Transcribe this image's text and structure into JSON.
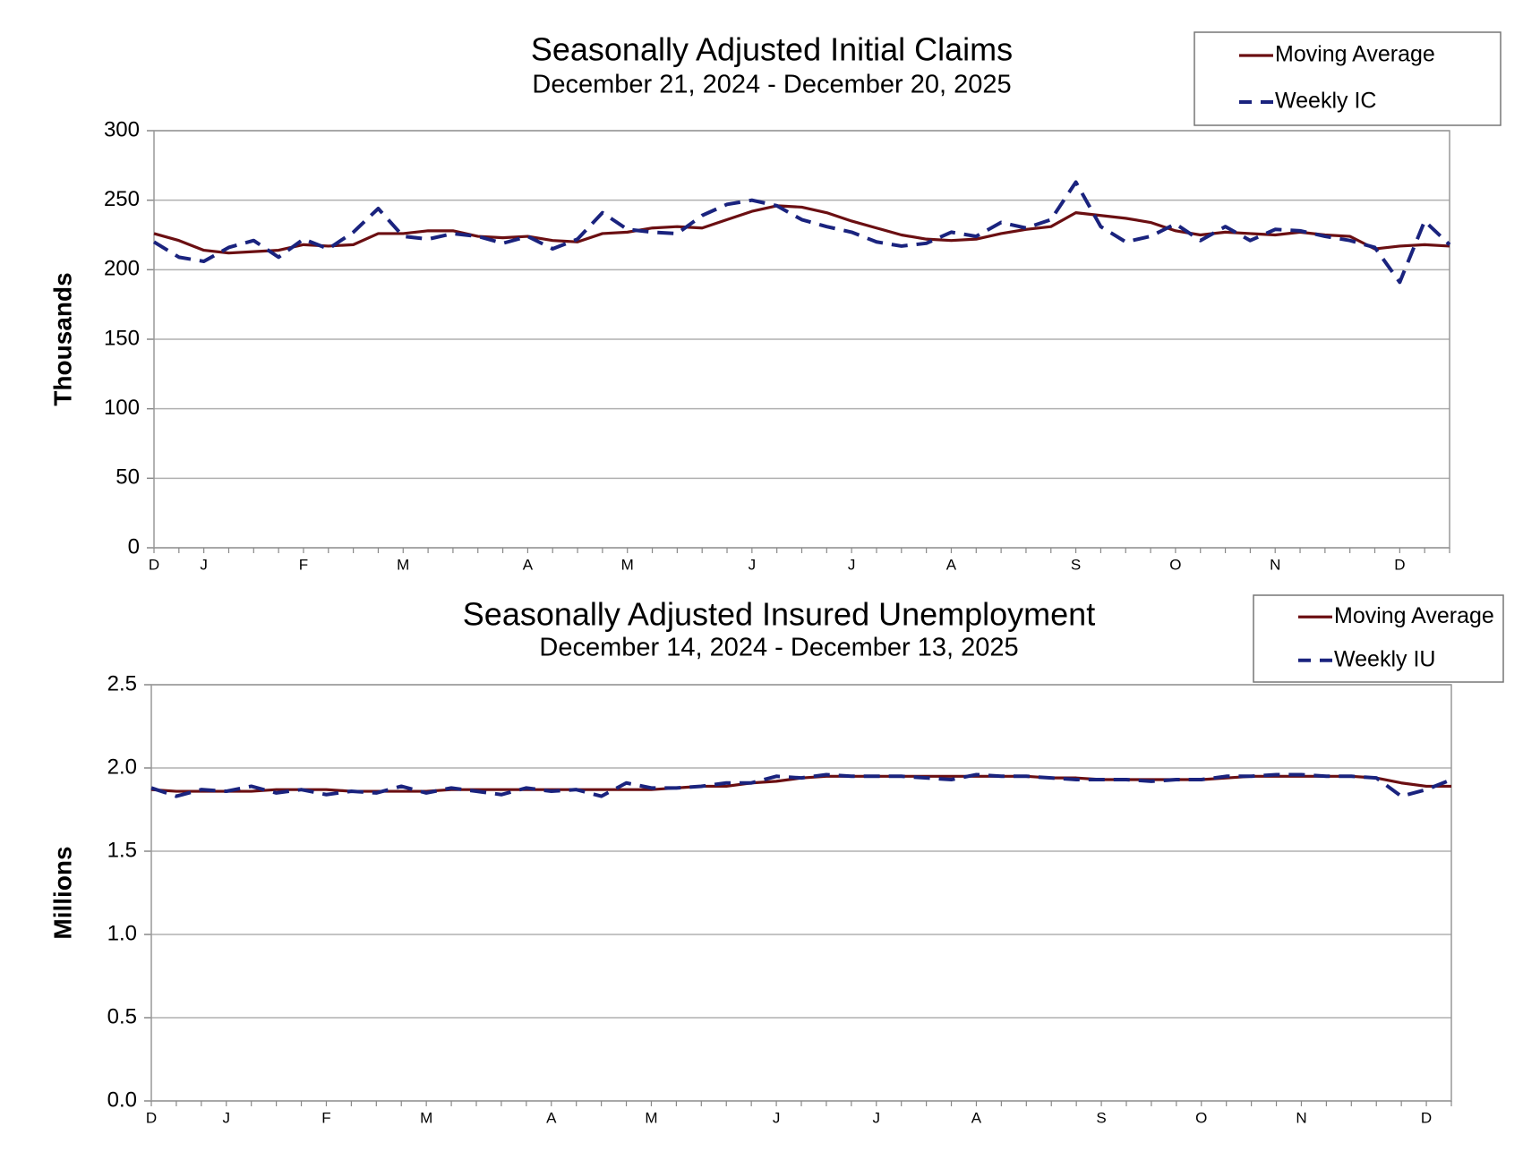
{
  "chart_data": [
    {
      "type": "line",
      "title": "Seasonally Adjusted Initial Claims",
      "subtitle": "December 21, 2024 - December 20, 2025",
      "y_label": "Thousands",
      "categories": [
        "D",
        null,
        "J",
        null,
        null,
        null,
        "F",
        null,
        null,
        null,
        "M",
        null,
        null,
        null,
        null,
        "A",
        null,
        null,
        null,
        "M",
        null,
        null,
        null,
        null,
        "J",
        null,
        null,
        null,
        "J",
        null,
        null,
        null,
        "A",
        null,
        null,
        null,
        null,
        "S",
        null,
        null,
        null,
        "O",
        null,
        null,
        null,
        "N",
        null,
        null,
        null,
        null,
        "D",
        null,
        null
      ],
      "series": [
        {
          "name": "Moving Average",
          "color": "#6b0f12",
          "line_style": "solid",
          "values": [
            226,
            221,
            214,
            212,
            213,
            214,
            218,
            217,
            218,
            226,
            226,
            228,
            228,
            224,
            223,
            224,
            221,
            220,
            226,
            227,
            230,
            231,
            230,
            236,
            242,
            246,
            245,
            241,
            235,
            230,
            225,
            222,
            221,
            222,
            226,
            229,
            231,
            241,
            239,
            237,
            234,
            228,
            225,
            227,
            226,
            225,
            227,
            225,
            224,
            215,
            217,
            218,
            217
          ]
        },
        {
          "name": "Weekly IC",
          "color": "#1a237e",
          "line_style": "dashed",
          "values": [
            220,
            209,
            206,
            216,
            221,
            209,
            222,
            215,
            227,
            244,
            224,
            222,
            226,
            224,
            219,
            224,
            215,
            222,
            241,
            229,
            227,
            226,
            239,
            247,
            250,
            246,
            236,
            231,
            227,
            220,
            217,
            219,
            227,
            224,
            234,
            230,
            236,
            263,
            231,
            220,
            224,
            233,
            221,
            231,
            221,
            229,
            228,
            224,
            221,
            216,
            191,
            235,
            218
          ]
        }
      ],
      "ylim": [
        0,
        300
      ],
      "yticks": [
        0,
        50,
        100,
        150,
        200,
        250,
        300
      ],
      "grid": true,
      "legend": "top-right"
    },
    {
      "type": "line",
      "title": "Seasonally Adjusted Insured Unemployment",
      "subtitle": "December 14, 2024 - December 13, 2025",
      "y_label": "Millions",
      "categories": [
        "D",
        null,
        null,
        "J",
        null,
        null,
        null,
        "F",
        null,
        null,
        null,
        "M",
        null,
        null,
        null,
        null,
        "A",
        null,
        null,
        null,
        "M",
        null,
        null,
        null,
        null,
        "J",
        null,
        null,
        null,
        "J",
        null,
        null,
        null,
        "A",
        null,
        null,
        null,
        null,
        "S",
        null,
        null,
        null,
        "O",
        null,
        null,
        null,
        "N",
        null,
        null,
        null,
        null,
        "D",
        null
      ],
      "series": [
        {
          "name": "Moving Average",
          "color": "#6b0f12",
          "line_style": "solid",
          "values": [
            1.87,
            1.86,
            1.86,
            1.86,
            1.86,
            1.87,
            1.87,
            1.87,
            1.86,
            1.86,
            1.86,
            1.86,
            1.87,
            1.87,
            1.87,
            1.87,
            1.87,
            1.87,
            1.87,
            1.87,
            1.87,
            1.88,
            1.89,
            1.89,
            1.91,
            1.92,
            1.94,
            1.95,
            1.95,
            1.95,
            1.95,
            1.95,
            1.95,
            1.95,
            1.95,
            1.95,
            1.94,
            1.94,
            1.93,
            1.93,
            1.93,
            1.93,
            1.93,
            1.94,
            1.95,
            1.95,
            1.95,
            1.95,
            1.95,
            1.94,
            1.91,
            1.89,
            1.89
          ]
        },
        {
          "name": "Weekly IU",
          "color": "#1a237e",
          "line_style": "dashed",
          "values": [
            1.88,
            1.83,
            1.87,
            1.86,
            1.89,
            1.85,
            1.87,
            1.84,
            1.86,
            1.85,
            1.89,
            1.85,
            1.88,
            1.86,
            1.84,
            1.88,
            1.86,
            1.87,
            1.83,
            1.91,
            1.88,
            1.88,
            1.89,
            1.91,
            1.91,
            1.95,
            1.94,
            1.96,
            1.95,
            1.95,
            1.95,
            1.94,
            1.93,
            1.96,
            1.95,
            1.95,
            1.94,
            1.93,
            1.93,
            1.93,
            1.92,
            1.93,
            1.93,
            1.95,
            1.95,
            1.96,
            1.96,
            1.95,
            1.95,
            1.94,
            1.83,
            1.87,
            1.93
          ]
        }
      ],
      "ylim": [
        0,
        2.5
      ],
      "yticks": [
        {
          "value": 0,
          "label": "0.0"
        },
        0.5,
        {
          "value": 1,
          "label": "1.0"
        },
        1.5,
        {
          "value": 2,
          "label": "2.0"
        },
        2.5
      ],
      "grid": true,
      "legend": "top-right"
    }
  ]
}
